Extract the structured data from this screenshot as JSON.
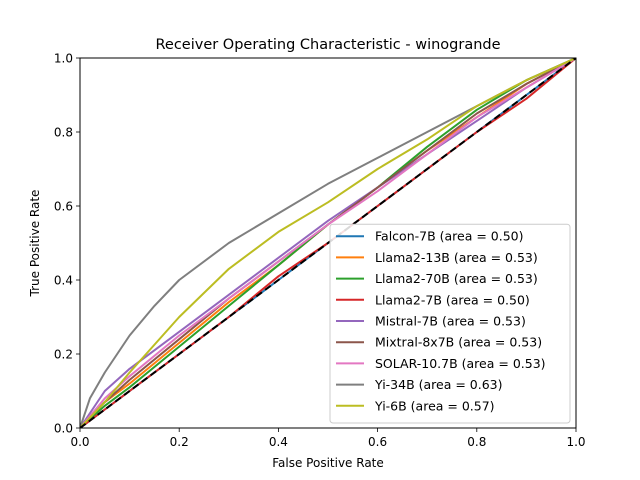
{
  "chart_data": {
    "type": "line",
    "title": "Receiver Operating Characteristic - winogrande",
    "xlabel": "False Positive Rate",
    "ylabel": "True Positive Rate",
    "xlim": [
      0,
      1
    ],
    "ylim": [
      0,
      1
    ],
    "xticks": [
      "0.0",
      "0.2",
      "0.4",
      "0.6",
      "0.8",
      "1.0"
    ],
    "yticks": [
      "0.0",
      "0.2",
      "0.4",
      "0.6",
      "0.8",
      "1.0"
    ],
    "grid": false,
    "legend_position": "lower-right",
    "reference_line": {
      "x": [
        0,
        1
      ],
      "y": [
        0,
        1
      ],
      "style": "dashed",
      "color": "#000000"
    },
    "series": [
      {
        "name": "Falcon-7B (area = 0.50)",
        "color": "#1f77b4",
        "x": [
          0,
          0.05,
          0.1,
          0.2,
          0.3,
          0.4,
          0.5,
          0.6,
          0.7,
          0.8,
          0.9,
          1.0
        ],
        "y": [
          0,
          0.05,
          0.1,
          0.2,
          0.3,
          0.4,
          0.5,
          0.6,
          0.7,
          0.8,
          0.9,
          1.0
        ]
      },
      {
        "name": "Llama2-13B (area = 0.53)",
        "color": "#ff7f0e",
        "x": [
          0,
          0.05,
          0.1,
          0.2,
          0.3,
          0.4,
          0.5,
          0.6,
          0.7,
          0.8,
          0.9,
          1.0
        ],
        "y": [
          0,
          0.07,
          0.12,
          0.23,
          0.34,
          0.44,
          0.55,
          0.65,
          0.75,
          0.84,
          0.93,
          1.0
        ]
      },
      {
        "name": "Llama2-70B (area = 0.53)",
        "color": "#2ca02c",
        "x": [
          0,
          0.05,
          0.1,
          0.2,
          0.3,
          0.4,
          0.5,
          0.6,
          0.7,
          0.8,
          0.9,
          1.0
        ],
        "y": [
          0,
          0.06,
          0.11,
          0.22,
          0.33,
          0.44,
          0.55,
          0.65,
          0.76,
          0.86,
          0.94,
          1.0
        ]
      },
      {
        "name": "Llama2-7B (area = 0.50)",
        "color": "#d62728",
        "x": [
          0,
          0.05,
          0.1,
          0.2,
          0.3,
          0.4,
          0.5,
          0.6,
          0.7,
          0.8,
          0.9,
          1.0
        ],
        "y": [
          0,
          0.05,
          0.1,
          0.2,
          0.3,
          0.41,
          0.5,
          0.6,
          0.7,
          0.8,
          0.89,
          1.0
        ]
      },
      {
        "name": "Mistral-7B (area = 0.53)",
        "color": "#9467bd",
        "x": [
          0,
          0.05,
          0.1,
          0.2,
          0.3,
          0.4,
          0.5,
          0.6,
          0.7,
          0.8,
          0.9,
          1.0
        ],
        "y": [
          0,
          0.1,
          0.16,
          0.26,
          0.36,
          0.46,
          0.56,
          0.65,
          0.74,
          0.83,
          0.92,
          1.0
        ]
      },
      {
        "name": "Mixtral-8x7B (area = 0.53)",
        "color": "#8c564b",
        "x": [
          0,
          0.05,
          0.1,
          0.2,
          0.3,
          0.4,
          0.5,
          0.6,
          0.7,
          0.8,
          0.9,
          1.0
        ],
        "y": [
          0,
          0.07,
          0.13,
          0.24,
          0.35,
          0.45,
          0.55,
          0.65,
          0.75,
          0.85,
          0.93,
          1.0
        ]
      },
      {
        "name": "SOLAR-10.7B (area = 0.53)",
        "color": "#e377c2",
        "x": [
          0,
          0.05,
          0.1,
          0.2,
          0.3,
          0.4,
          0.5,
          0.6,
          0.7,
          0.8,
          0.9,
          1.0
        ],
        "y": [
          0,
          0.08,
          0.14,
          0.25,
          0.35,
          0.45,
          0.55,
          0.64,
          0.74,
          0.84,
          0.92,
          1.0
        ]
      },
      {
        "name": "Yi-34B (area = 0.63)",
        "color": "#7f7f7f",
        "x": [
          0,
          0.02,
          0.05,
          0.1,
          0.15,
          0.2,
          0.3,
          0.4,
          0.5,
          0.6,
          0.7,
          0.8,
          0.9,
          1.0
        ],
        "y": [
          0,
          0.08,
          0.15,
          0.25,
          0.33,
          0.4,
          0.5,
          0.58,
          0.66,
          0.73,
          0.8,
          0.87,
          0.94,
          1.0
        ]
      },
      {
        "name": "Yi-6B (area = 0.57)",
        "color": "#bcbd22",
        "x": [
          0,
          0.05,
          0.1,
          0.2,
          0.3,
          0.4,
          0.5,
          0.6,
          0.7,
          0.8,
          0.9,
          1.0
        ],
        "y": [
          0,
          0.07,
          0.15,
          0.3,
          0.43,
          0.53,
          0.61,
          0.7,
          0.78,
          0.87,
          0.94,
          1.0
        ]
      }
    ]
  }
}
